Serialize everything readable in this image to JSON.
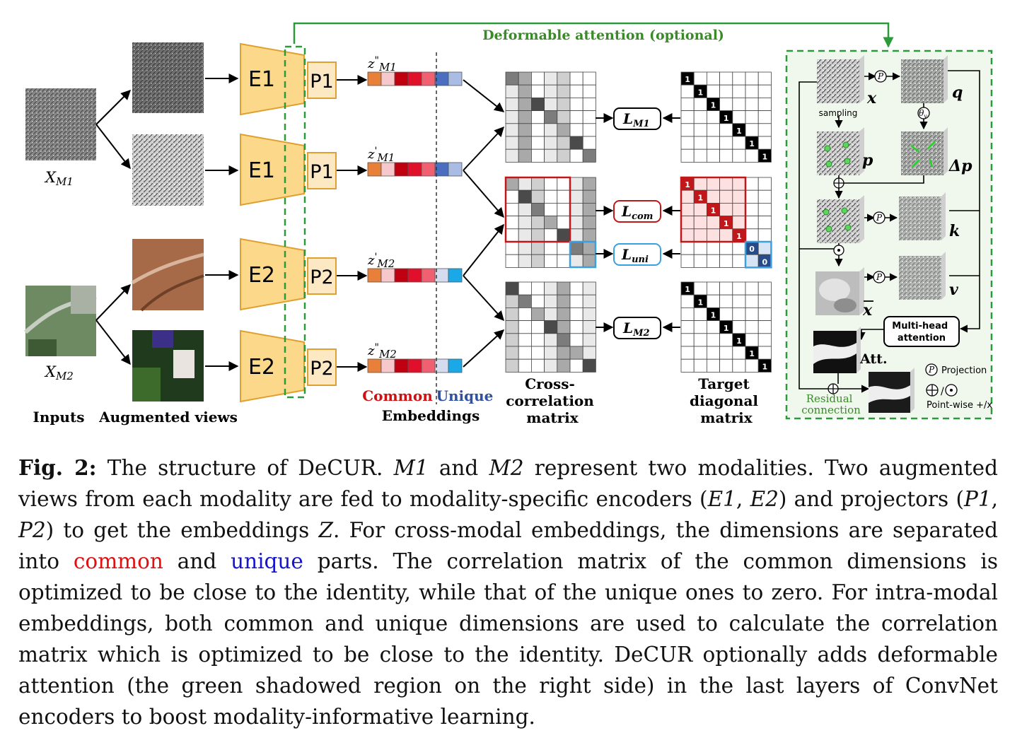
{
  "figure": {
    "deformable_label": "Deformable attention (optional)",
    "inputs_label": "Inputs",
    "augmented_label": "Augmented views",
    "x_m1": "X",
    "x_m1_sub": "M1",
    "x_m2": "X",
    "x_m2_sub": "M2",
    "encoders": [
      "E1",
      "E1",
      "E2",
      "E2"
    ],
    "projectors": [
      "P1",
      "P1",
      "P2",
      "P2"
    ],
    "embeddings": [
      {
        "z": "z",
        "prime": "\"",
        "sub": "M1"
      },
      {
        "z": "z",
        "prime": "'",
        "sub": "M1"
      },
      {
        "z": "z",
        "prime": "'",
        "sub": "M2"
      },
      {
        "z": "z",
        "prime": "\"",
        "sub": "M2"
      }
    ],
    "common_label": "Common",
    "unique_label": "Unique",
    "embeddings_label": "Embeddings",
    "cross_corr_label": [
      "Cross-",
      "correlation",
      "matrix"
    ],
    "target_label": [
      "Target",
      "diagonal",
      "matrix"
    ],
    "losses": [
      {
        "L": "L",
        "sub": "M1"
      },
      {
        "L": "L",
        "sub": "com"
      },
      {
        "L": "L",
        "sub": "uni"
      },
      {
        "L": "L",
        "sub": "M2"
      }
    ],
    "diag_one": "1",
    "diag_zero": "0",
    "attention": {
      "sampling": "sampling",
      "x": "x",
      "q": "q",
      "p": "p",
      "dp": "Δp",
      "k": "k",
      "v": "v",
      "xbar": "x",
      "att": "Att.",
      "mha": [
        "Multi-head",
        "attention"
      ],
      "residual": [
        "Residual",
        "connection"
      ],
      "P": "P",
      "theta": "θ",
      "theta_sub": "v",
      "projection_label": "Projection",
      "pointwise_label": "Point-wise +/x"
    },
    "colors": {
      "green": "#2a9a3a",
      "green_text": "#3a8a2a",
      "encoder_fill": "#fcd98a",
      "encoder_stroke": "#e0a030",
      "proj_fill": "#fde8c4",
      "red_box": "#c0181a",
      "blue_box": "#3aa0e0",
      "common_text": "#d01010",
      "unique_text": "#3050a0"
    }
  },
  "caption": {
    "label": "Fig. 2:",
    "t1": " The structure of DeCUR. ",
    "m1": "M1",
    "t2": " and ",
    "m2": "M2",
    "t3": " represent two modalities. Two augmented views from each modality are fed to modality-specific encoders (",
    "e1": "E1",
    "t4": ", ",
    "e2": "E2",
    "t5": ") and projectors (",
    "p1": "P1",
    "t6": ", ",
    "p2": "P2",
    "t7": ") to get the embeddings ",
    "z": "Z",
    "t8": ". For cross-modal embeddings, the dimensions are separated into ",
    "common": "common",
    "t9": " and ",
    "unique": "unique",
    "t10": " parts. The correlation matrix of the common dimensions is optimized to be close to the identity, while that of the unique ones to zero. For intra-modal embeddings, both common and unique dimensions are used to calculate the correlation matrix which is optimized to be close to the identity. DeCUR optionally adds deformable attention (the green shadowed region on the right side) in the last layers of ConvNet encoders to boost modality-informative learning."
  }
}
